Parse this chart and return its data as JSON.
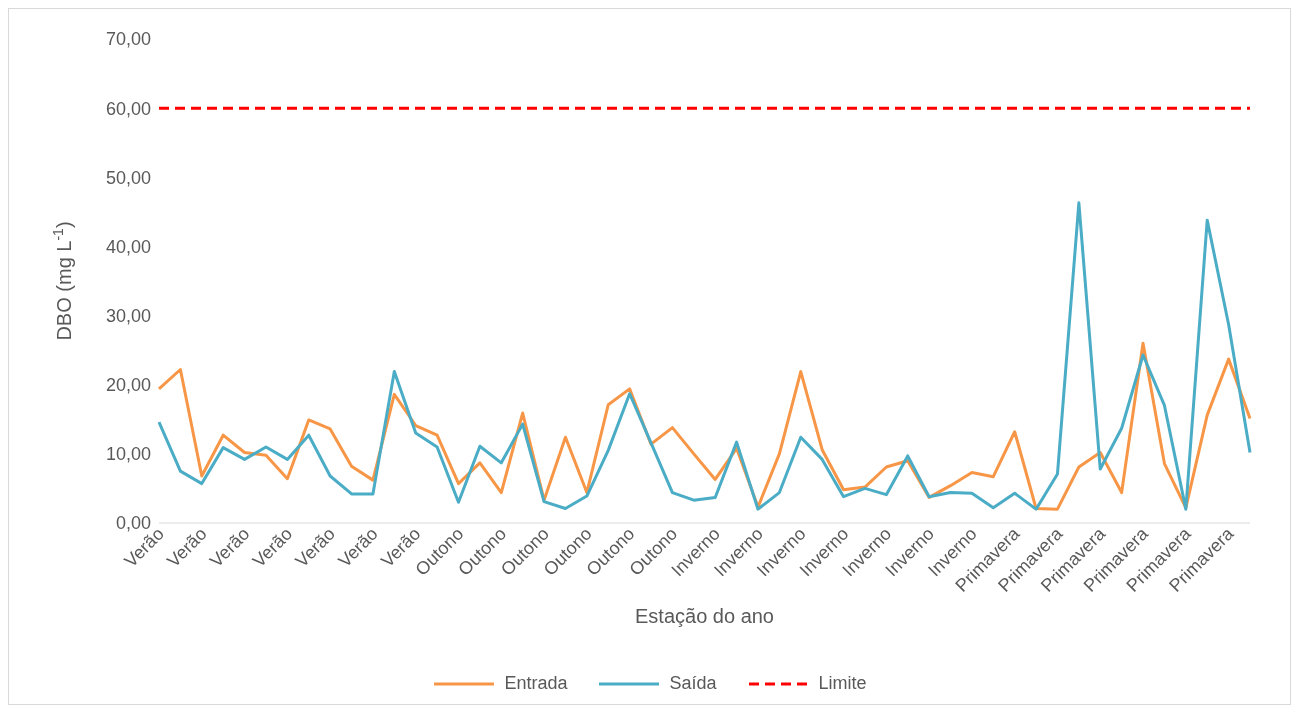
{
  "chart_data": {
    "type": "line",
    "xlabel": "Estação do ano",
    "ylabel": "DBO (mg L$^{-1}$)",
    "categories": [
      "Verão",
      null,
      "Verão",
      null,
      "Verão",
      null,
      "Verão",
      null,
      "Verão",
      null,
      "Verão",
      null,
      "Verão",
      null,
      "Outono",
      null,
      "Outono",
      null,
      "Outono",
      null,
      "Outono",
      null,
      "Outono",
      null,
      "Outono",
      null,
      "Inverno",
      null,
      "Inverno",
      null,
      "Inverno",
      null,
      "Inverno",
      null,
      "Inverno",
      null,
      "Inverno",
      null,
      "Inverno",
      null,
      "Primavera",
      null,
      "Primavera",
      null,
      "Primavera",
      null,
      "Primavera",
      null,
      "Primavera",
      null,
      "Primavera",
      null
    ],
    "series": [
      {
        "name": "Entrada",
        "color": "#f79646",
        "values": [
          19.4,
          22.2,
          6.8,
          12.7,
          10.2,
          9.8,
          6.4,
          14.9,
          13.6,
          8.2,
          6.2,
          18.6,
          14.1,
          12.7,
          5.7,
          8.7,
          4.4,
          15.9,
          3.3,
          12.4,
          4.4,
          17.1,
          19.4,
          11.4,
          13.8,
          10.0,
          6.3,
          10.8,
          2.3,
          10.0,
          21.9,
          10.6,
          4.8,
          5.2,
          8.1,
          9.0,
          3.7,
          5.4,
          7.3,
          6.7,
          13.2,
          2.1,
          2.0,
          8.1,
          10.2,
          4.4,
          26.0,
          8.6,
          2.2,
          15.6,
          23.7,
          15.1
        ]
      },
      {
        "name": "Saída",
        "color": "#4bacc6",
        "values": [
          14.6,
          7.5,
          5.7,
          10.9,
          9.2,
          11.0,
          9.2,
          12.7,
          6.8,
          4.2,
          4.2,
          21.9,
          13.0,
          11.0,
          3.0,
          11.1,
          8.7,
          14.3,
          3.1,
          2.1,
          3.9,
          10.5,
          18.7,
          11.6,
          4.4,
          3.3,
          3.7,
          11.7,
          2.0,
          4.4,
          12.4,
          9.2,
          3.8,
          5.0,
          4.1,
          9.7,
          3.8,
          4.4,
          4.3,
          2.2,
          4.3,
          2.0,
          7.1,
          46.3,
          7.8,
          13.7,
          24.3,
          17.0,
          2.0,
          43.8,
          28.7,
          10.2
        ]
      },
      {
        "name": "Limite",
        "color": "#ff0000",
        "line_style": "dashed",
        "values": [
          60,
          60,
          60,
          60,
          60,
          60,
          60,
          60,
          60,
          60,
          60,
          60,
          60,
          60,
          60,
          60,
          60,
          60,
          60,
          60,
          60,
          60,
          60,
          60,
          60,
          60,
          60,
          60,
          60,
          60,
          60,
          60,
          60,
          60,
          60,
          60,
          60,
          60,
          60,
          60,
          60,
          60,
          60,
          60,
          60,
          60,
          60,
          60,
          60,
          60,
          60,
          60
        ]
      }
    ],
    "ylim": [
      0,
      70
    ],
    "yticks": [
      {
        "value": 0,
        "label": "0,00"
      },
      {
        "value": 10,
        "label": "10,00"
      },
      {
        "value": 20,
        "label": "20,00"
      },
      {
        "value": 30,
        "label": "30,00"
      },
      {
        "value": 40,
        "label": "40,00"
      },
      {
        "value": 50,
        "label": "50,00"
      },
      {
        "value": 60,
        "label": "60,00"
      },
      {
        "value": 70,
        "label": "70,00"
      }
    ],
    "legend": "bottom",
    "marker": "none"
  }
}
